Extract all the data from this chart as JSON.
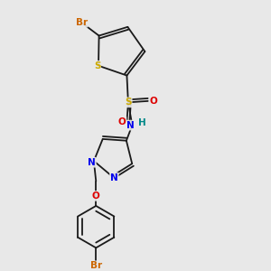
{
  "background_color": "#e8e8e8",
  "figsize": [
    3.0,
    3.0
  ],
  "dpi": 100,
  "bond_color": "#1a1a1a",
  "lw": 1.3,
  "colors": {
    "Br": "#cc6600",
    "S": "#ccaa00",
    "O": "#dd0000",
    "N": "#0000ee",
    "H": "#008888",
    "C": "#1a1a1a"
  }
}
